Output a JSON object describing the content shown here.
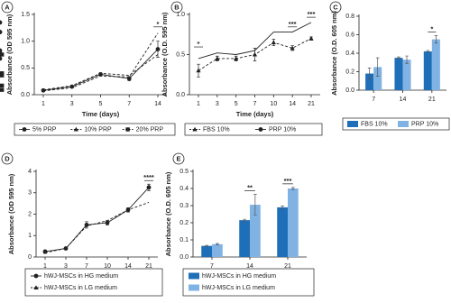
{
  "chart_data": [
    {
      "type": "line",
      "panel": "A",
      "xlabel": "Time (days)",
      "ylabel": "Absorbance (OD 595 nm)",
      "categories": [
        "1",
        "3",
        "5",
        "7",
        "14"
      ],
      "ylim": [
        0,
        1.5
      ],
      "yticks": [
        {
          "value": 0,
          "label": "0.0"
        },
        0.5,
        {
          "value": 1,
          "label": "1.0"
        },
        1.5
      ],
      "series": [
        {
          "name": "5% PRP",
          "color": "#222222",
          "marker": "circle",
          "line_style": "solid",
          "values": [
            0.08,
            0.15,
            0.38,
            0.3,
            0.85
          ],
          "errors": [
            0.02,
            0.02,
            0.03,
            0.04,
            0.15
          ]
        },
        {
          "name": "10% PRP",
          "color": "#222222",
          "marker": "triangle",
          "line_style": "dashed",
          "values": [
            0.07,
            0.13,
            0.35,
            0.33,
            1.15
          ],
          "errors": [
            0.02,
            0.02,
            0.03,
            0.04,
            0.05
          ]
        },
        {
          "name": "20% PRP",
          "color": "#222222",
          "marker": "square",
          "line_style": "dashed",
          "values": [
            0.09,
            0.17,
            0.4,
            0.36,
            0.75
          ],
          "errors": [
            0.02,
            0.02,
            0.03,
            0.04,
            0.15
          ]
        }
      ],
      "significance": [
        null,
        null,
        null,
        null,
        "*"
      ],
      "legend": "bottom-row"
    },
    {
      "type": "line",
      "panel": "B",
      "xlabel": "Time (days)",
      "ylabel": "Absorbance (O.D. 595 nm)",
      "categories": [
        "1",
        "3",
        "5",
        "7",
        "10",
        "14",
        "21"
      ],
      "ylim": [
        0,
        1
      ],
      "yticks": [
        {
          "value": 0,
          "label": "0.0"
        },
        0.5,
        {
          "value": 1,
          "label": "1.0"
        }
      ],
      "series": [
        {
          "name": "FBS 10%",
          "color": "#222222",
          "marker": "triangle",
          "line_style": "dashed",
          "values": [
            0.3,
            0.45,
            0.45,
            0.5,
            0.65,
            0.58,
            0.7
          ],
          "errors": [
            0.08,
            0.03,
            0.03,
            0.08,
            0.04,
            0.03,
            0.02
          ]
        },
        {
          "name": "PRP 10%",
          "color": "#222222",
          "marker": "circle",
          "line_style": "solid",
          "values": [
            0.45,
            0.52,
            0.5,
            0.55,
            0.78,
            0.78,
            0.9
          ],
          "errors": [
            0.1,
            0.03,
            0.03,
            0.05,
            0.08,
            0.02,
            0.02
          ]
        }
      ],
      "significance": [
        "*",
        null,
        null,
        null,
        null,
        "***",
        "***"
      ],
      "legend": "bottom-row"
    },
    {
      "type": "bar",
      "panel": "C",
      "xlabel": null,
      "ylabel": "Absorbance (O.D. 605 nm)",
      "categories": [
        "7",
        "14",
        "21"
      ],
      "ylim": [
        0,
        0.8
      ],
      "yticks": [
        {
          "value": 0,
          "label": "0.0"
        },
        0.2,
        0.4,
        0.6,
        0.8
      ],
      "series": [
        {
          "name": "FBS 10%",
          "color": "#1f6fb8",
          "values": [
            0.18,
            0.35,
            0.42
          ],
          "errors": [
            0.06,
            0.01,
            0.01
          ]
        },
        {
          "name": "PRP 10%",
          "color": "#80b3e3",
          "values": [
            0.25,
            0.33,
            0.55
          ],
          "errors": [
            0.1,
            0.04,
            0.04
          ]
        }
      ],
      "significance": [
        null,
        null,
        "*"
      ],
      "legend": "bottom-row"
    },
    {
      "type": "line",
      "panel": "D",
      "xlabel": "Time (days)",
      "ylabel": "Absorbance (OD 595 nm)",
      "categories": [
        "1",
        "3",
        "7",
        "10",
        "14",
        "21"
      ],
      "ylim": [
        0,
        4
      ],
      "yticks": [
        0,
        1,
        2,
        3,
        4
      ],
      "series": [
        {
          "name": "hWJ-MSCs in HG medium",
          "color": "#222222",
          "marker": "circle",
          "line_style": "solid",
          "values": [
            0.25,
            0.4,
            1.5,
            1.6,
            2.2,
            3.25
          ],
          "errors": [
            0.08,
            0.05,
            0.15,
            0.1,
            0.1,
            0.15
          ]
        },
        {
          "name": "hWJ-MSCs in LG medium",
          "color": "#222222",
          "marker": "triangle",
          "line_style": "dashed",
          "values": [
            0.2,
            0.4,
            1.45,
            1.7,
            2.2,
            2.55
          ],
          "errors": [
            0.08,
            0.05,
            0.15,
            0.1,
            0.1,
            0.08
          ]
        }
      ],
      "significance": [
        null,
        null,
        null,
        null,
        null,
        "****"
      ],
      "legend": "bottom-column"
    },
    {
      "type": "bar",
      "panel": "E",
      "xlabel": null,
      "ylabel": "Absorbance (O.D. 605 nm)",
      "categories": [
        "7",
        "14",
        "21"
      ],
      "ylim": [
        0,
        0.5
      ],
      "yticks": [
        {
          "value": 0,
          "label": "0.0"
        },
        0.1,
        0.2,
        0.3,
        0.4,
        0.5
      ],
      "series": [
        {
          "name": "hWJ-MSCs in HG medium",
          "color": "#1f6fb8",
          "values": [
            0.065,
            0.215,
            0.29
          ],
          "errors": [
            0.003,
            0.005,
            0.008
          ]
        },
        {
          "name": "hWJ-MSCs in LG medium",
          "color": "#80b3e3",
          "values": [
            0.075,
            0.305,
            0.4
          ],
          "errors": [
            0.004,
            0.06,
            0.006
          ]
        }
      ],
      "significance": [
        null,
        "**",
        "***"
      ],
      "legend": "bottom-column"
    }
  ]
}
